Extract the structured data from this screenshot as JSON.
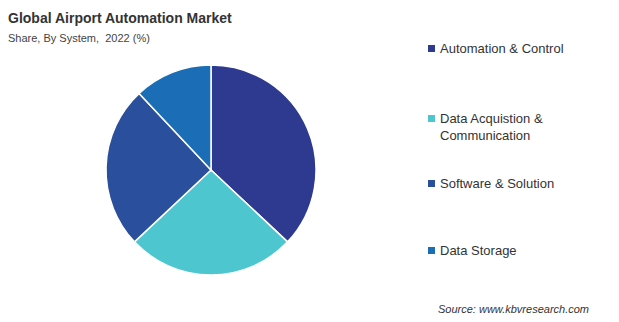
{
  "chart_data": {
    "type": "pie",
    "title": "Global Airport Automation Market",
    "subtitle": "Share, By System,  2022 (%)",
    "categories": [
      "Automation & Control",
      "Data Acquistion & Communication",
      "Software & Solution",
      "Data Storage"
    ],
    "values": [
      37,
      26,
      25,
      12
    ],
    "colors": [
      "#2e3a8f",
      "#4dc6d0",
      "#2a4f9c",
      "#1b6db5"
    ],
    "legend": "right",
    "source": "Source: www.kbvresearch.com"
  }
}
